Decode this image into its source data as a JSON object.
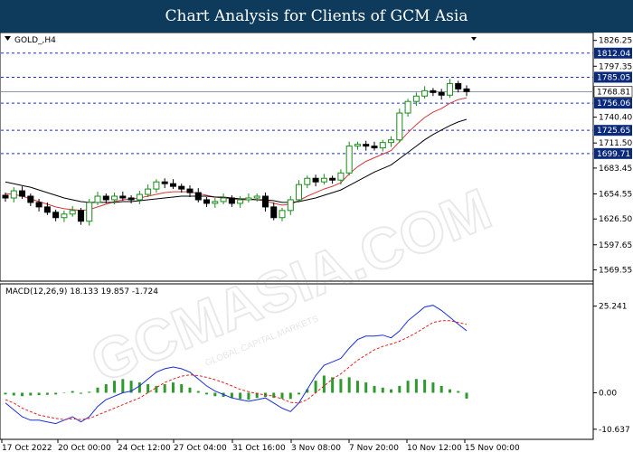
{
  "header": {
    "title": "Chart Analysis for Clients of GCM Asia"
  },
  "watermark": {
    "text": "GCMASIA.COM",
    "subtext": "GLOBAL CAPITAL MARKETS"
  },
  "colors": {
    "banner": "#0e3b5c",
    "level_label_bg": "#0b2a7a",
    "level_line": "#1a2fd6",
    "bull_candle": "#1a8a1a",
    "bear_candle": "#000000",
    "ma_fast": "#d43a3a",
    "ma_slow": "#000000",
    "macd_line": "#1a2fd6",
    "signal_line": "#e02020",
    "histogram": "#2e9a2e"
  },
  "chart_data": [
    {
      "type": "candlestick",
      "title": "GOLD_,H4",
      "xlabel": "",
      "ylabel": "",
      "ylim": [
        1560,
        1831
      ],
      "y_ticks": [
        "1826.25",
        "1797.35",
        "1740.40",
        "1711.50",
        "1683.45",
        "1654.55",
        "1626.50",
        "1597.65",
        "1569.55"
      ],
      "x_ticks": [
        "17 Oct 2022",
        "20 Oct 00:00",
        "24 Oct 12:00",
        "27 Oct 04:00",
        "31 Oct 16:00",
        "3 Nov 08:00",
        "7 Nov 20:00",
        "10 Nov 12:00",
        "15 Nov 00:00"
      ],
      "grid": false,
      "levels": [
        {
          "value": 1812.04,
          "label": "1812.04"
        },
        {
          "value": 1785.05,
          "label": "1785.05"
        },
        {
          "value": 1756.06,
          "label": "1756.06"
        },
        {
          "value": 1725.65,
          "label": "1725.65"
        },
        {
          "value": 1699.71,
          "label": "1699.71"
        }
      ],
      "current_price": {
        "value": 1768.81,
        "label": "1768.81"
      },
      "series": [
        {
          "values": [
            1650,
            1658,
            1652,
            1645,
            1640,
            1634,
            1628,
            1632,
            1636,
            1624,
            1645,
            1652,
            1648,
            1652,
            1650,
            1648,
            1654,
            1660,
            1668,
            1666,
            1663,
            1660,
            1656,
            1648,
            1644,
            1646,
            1650,
            1644,
            1648,
            1650,
            1652,
            1640,
            1628,
            1636,
            1648,
            1665,
            1672,
            1668,
            1672,
            1670,
            1678,
            1708,
            1710,
            1708,
            1706,
            1712,
            1715,
            1745,
            1758,
            1764,
            1770,
            1768,
            1765,
            1778,
            1772,
            1769
          ]
        }
      ],
      "ma": [
        {
          "name": "",
          "values": [
            1655,
            1654,
            1652,
            1649,
            1646,
            1643,
            1640,
            1638,
            1637,
            1636,
            1637,
            1640,
            1643,
            1646,
            1648,
            1649,
            1650,
            1652,
            1654,
            1656,
            1657,
            1657,
            1657,
            1655,
            1653,
            1651,
            1650,
            1649,
            1648,
            1648,
            1648,
            1647,
            1644,
            1642,
            1643,
            1647,
            1652,
            1656,
            1660,
            1663,
            1667,
            1677,
            1685,
            1691,
            1695,
            1699,
            1703,
            1713,
            1723,
            1732,
            1740,
            1746,
            1750,
            1756,
            1760,
            1762
          ]
        },
        {
          "name": "",
          "values": [
            1668,
            1666,
            1664,
            1662,
            1659,
            1656,
            1653,
            1650,
            1648,
            1646,
            1645,
            1645,
            1645,
            1645,
            1646,
            1646,
            1647,
            1648,
            1649,
            1650,
            1651,
            1652,
            1652,
            1652,
            1652,
            1651,
            1651,
            1650,
            1649,
            1649,
            1648,
            1648,
            1647,
            1645,
            1645,
            1646,
            1648,
            1650,
            1653,
            1656,
            1659,
            1664,
            1669,
            1674,
            1679,
            1683,
            1687,
            1694,
            1701,
            1708,
            1715,
            1721,
            1726,
            1731,
            1735,
            1738
          ]
        }
      ]
    },
    {
      "type": "macd",
      "title": "MACD(12,26,9) 18.133 19.857 -1.724",
      "ylim": [
        -12,
        27
      ],
      "y_ticks": [
        "25.241",
        "0.00",
        "-10.637"
      ],
      "series": [
        {
          "name": "",
          "values": [
            -3,
            -5,
            -7,
            -8,
            -8,
            -8.5,
            -9,
            -8,
            -7,
            -8.5,
            -7,
            -4,
            -2,
            -1,
            0,
            0.5,
            2,
            4,
            6,
            7,
            7.5,
            7,
            6,
            4,
            2,
            0.5,
            -0.5,
            -1.5,
            -2,
            -2.5,
            -2,
            -1.5,
            -3,
            -4.5,
            -5.5,
            -3,
            1,
            5,
            8,
            9,
            10,
            13,
            15.5,
            16.5,
            16.5,
            16.8,
            16,
            18,
            21,
            23,
            25,
            25.5,
            24,
            22,
            20,
            18.1
          ]
        },
        {
          "name": "",
          "values": [
            -2,
            -3,
            -4.5,
            -5.5,
            -6.5,
            -7,
            -7.5,
            -7.8,
            -7.6,
            -7.8,
            -7.5,
            -6.5,
            -5.5,
            -4.5,
            -3.5,
            -2.5,
            -1.5,
            0,
            1.5,
            3,
            4,
            4.8,
            5.2,
            5,
            4.5,
            3.8,
            3,
            2,
            1,
            0.3,
            -0.3,
            -0.6,
            -1,
            -1.8,
            -2.8,
            -3,
            -2,
            0,
            2,
            4,
            5.5,
            7.5,
            9.5,
            11,
            12.5,
            13.5,
            14.2,
            15,
            16.2,
            17.5,
            19,
            20.5,
            21,
            21,
            20.5,
            19.9
          ]
        },
        {
          "name": "",
          "values": [
            -0.5,
            -0.8,
            -1,
            -0.8,
            -0.7,
            -0.6,
            -0.5,
            0,
            0.5,
            -0.3,
            0.3,
            1.5,
            2.5,
            3.5,
            4,
            3.5,
            3,
            2.5,
            2,
            2.5,
            3,
            2.5,
            1.5,
            0.5,
            -0.5,
            -1,
            -1.2,
            -1.5,
            -1.8,
            -2,
            -1.5,
            -1.2,
            -1.5,
            -1.7,
            -1.8,
            -0.5,
            1,
            3.5,
            5,
            4.5,
            4,
            4.5,
            3.5,
            3,
            2,
            1.5,
            1,
            2,
            3.5,
            4,
            3.8,
            3,
            2,
            1,
            0.5,
            -1.7
          ]
        }
      ]
    }
  ]
}
